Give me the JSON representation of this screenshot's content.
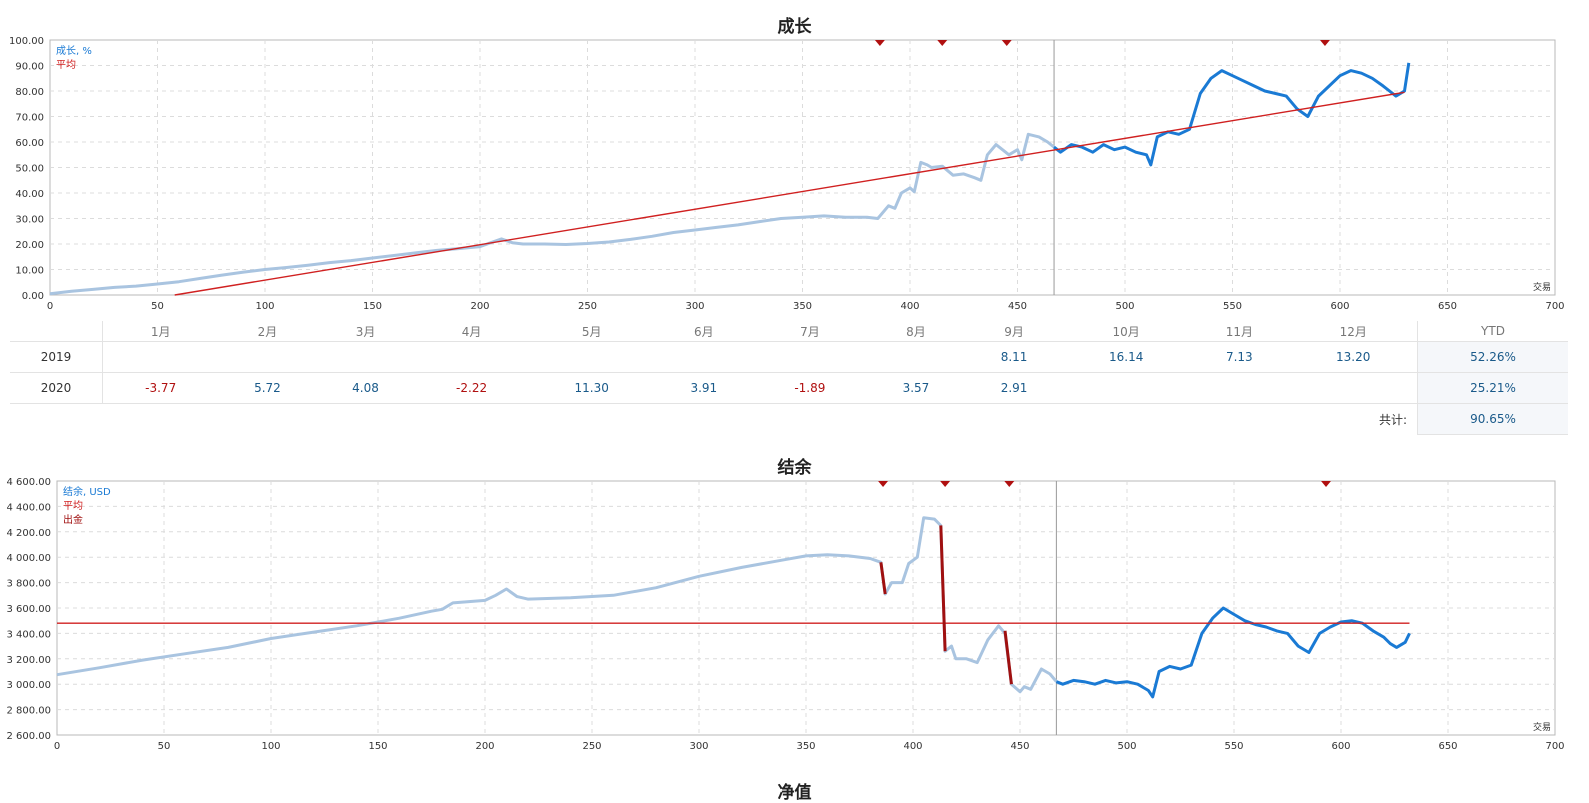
{
  "chart_data": [
    {
      "type": "line",
      "title": "成长",
      "xlabel": "交易",
      "xlim": [
        0,
        700
      ],
      "ylim": [
        0,
        100
      ],
      "x_ticks": [
        "0",
        "50",
        "100",
        "150",
        "200",
        "250",
        "300",
        "350",
        "400",
        "450",
        "500",
        "550",
        "600",
        "650",
        "700"
      ],
      "y_ticks": [
        "0.00",
        "10.00",
        "20.00",
        "30.00",
        "40.00",
        "50.00",
        "60.00",
        "70.00",
        "80.00",
        "90.00",
        "100.00"
      ],
      "grid": true,
      "legend_position": "top-left",
      "legend": [
        "成长, %",
        "平均"
      ],
      "divider_x": 467,
      "markers_x": [
        386,
        415,
        445,
        593
      ],
      "series": [
        {
          "name": "成长, %",
          "color": "#a9c4e0",
          "x": [
            0,
            10,
            20,
            30,
            40,
            50,
            60,
            70,
            80,
            90,
            100,
            110,
            120,
            130,
            140,
            150,
            160,
            170,
            180,
            190,
            200,
            205,
            210,
            215,
            220,
            230,
            240,
            250,
            260,
            270,
            280,
            290,
            300,
            310,
            320,
            330,
            340,
            350,
            360,
            370,
            380,
            385,
            390,
            393,
            396,
            400,
            402,
            405,
            408,
            410,
            415,
            420,
            425,
            430,
            433,
            436,
            440,
            443,
            446,
            450,
            452,
            455,
            460,
            464,
            467
          ],
          "values": [
            0.5,
            1.5,
            2.2,
            3,
            3.5,
            4.3,
            5.2,
            6.5,
            7.8,
            9,
            10,
            10.8,
            11.7,
            12.7,
            13.5,
            14.5,
            15.5,
            16.5,
            17.5,
            18.2,
            19,
            20.5,
            22,
            20.5,
            20,
            20,
            19.8,
            20.2,
            20.8,
            21.8,
            23,
            24.5,
            25.5,
            26.5,
            27.5,
            28.8,
            30,
            30.5,
            31,
            30.5,
            30.5,
            30,
            35,
            34,
            40,
            42,
            40.5,
            52,
            51,
            50,
            50.5,
            47,
            47.5,
            46,
            45,
            55,
            59,
            57,
            55,
            57,
            53,
            63,
            62,
            60,
            58
          ]
        },
        {
          "name": "成长, %",
          "color": "#1a7ad4",
          "x": [
            467,
            470,
            475,
            480,
            485,
            490,
            495,
            500,
            505,
            510,
            512,
            515,
            520,
            525,
            530,
            535,
            540,
            545,
            550,
            555,
            560,
            565,
            570,
            575,
            580,
            585,
            590,
            595,
            600,
            605,
            610,
            615,
            620,
            623,
            626,
            630,
            632
          ],
          "values": [
            58,
            56,
            59,
            58,
            56,
            59,
            57,
            58,
            56,
            55,
            51,
            62,
            64,
            63,
            65,
            79,
            85,
            88,
            86,
            84,
            82,
            80,
            79,
            78,
            73,
            70,
            78,
            82,
            86,
            88,
            87,
            85,
            82,
            80,
            78,
            80,
            91
          ]
        },
        {
          "name": "平均",
          "color": "#d02020",
          "x": [
            58,
            630
          ],
          "values": [
            0,
            79.5
          ]
        }
      ]
    },
    {
      "type": "line",
      "title": "结余",
      "xlabel": "交易",
      "xlim": [
        0,
        700
      ],
      "ylim": [
        2600,
        4600
      ],
      "x_ticks": [
        "0",
        "50",
        "100",
        "150",
        "200",
        "250",
        "300",
        "350",
        "400",
        "450",
        "500",
        "550",
        "600",
        "650",
        "700"
      ],
      "y_ticks": [
        "2 600.00",
        "2 800.00",
        "3 000.00",
        "3 200.00",
        "3 400.00",
        "3 600.00",
        "3 800.00",
        "4 000.00",
        "4 200.00",
        "4 400.00",
        "4 600.00"
      ],
      "grid": true,
      "legend_position": "top-left",
      "legend": [
        "结余, USD",
        "平均",
        "出金"
      ],
      "divider_x": 467,
      "markers_x": [
        386,
        415,
        445,
        593
      ],
      "series": [
        {
          "name": "结余, USD",
          "color": "#a9c4e0",
          "x": [
            0,
            20,
            40,
            60,
            80,
            100,
            120,
            140,
            160,
            175,
            180,
            185,
            200,
            205,
            210,
            215,
            220,
            240,
            260,
            280,
            300,
            320,
            340,
            350,
            360,
            370,
            380,
            385,
            387,
            390,
            395,
            398,
            402,
            405,
            410,
            413,
            415,
            418,
            420,
            425,
            430,
            435,
            440,
            443,
            446,
            450,
            452,
            455,
            460,
            464,
            467
          ],
          "values": [
            3075,
            3130,
            3190,
            3240,
            3290,
            3360,
            3410,
            3460,
            3520,
            3575,
            3590,
            3640,
            3660,
            3700,
            3750,
            3690,
            3670,
            3680,
            3700,
            3760,
            3850,
            3920,
            3980,
            4010,
            4020,
            4010,
            3990,
            3960,
            3710,
            3800,
            3800,
            3950,
            4000,
            4310,
            4300,
            4250,
            3260,
            3300,
            3200,
            3200,
            3170,
            3350,
            3460,
            3400,
            3000,
            2940,
            2980,
            2960,
            3120,
            3080,
            3020
          ]
        },
        {
          "name": "结余, USD",
          "color": "#1a7ad4",
          "x": [
            467,
            470,
            475,
            480,
            485,
            490,
            495,
            500,
            505,
            510,
            512,
            515,
            520,
            525,
            530,
            535,
            540,
            545,
            550,
            555,
            560,
            565,
            570,
            575,
            580,
            585,
            590,
            595,
            600,
            605,
            610,
            615,
            620,
            623,
            626,
            630,
            632
          ],
          "values": [
            3020,
            3000,
            3030,
            3020,
            3000,
            3030,
            3010,
            3020,
            3000,
            2950,
            2900,
            3100,
            3140,
            3120,
            3150,
            3400,
            3520,
            3600,
            3550,
            3500,
            3470,
            3450,
            3420,
            3400,
            3300,
            3250,
            3400,
            3450,
            3490,
            3500,
            3480,
            3420,
            3370,
            3320,
            3290,
            3330,
            3400
          ]
        },
        {
          "name": "平均",
          "color": "#d02020",
          "x": [
            0,
            632
          ],
          "values": [
            3480,
            3480
          ]
        },
        {
          "name": "出金",
          "color": "#a01010",
          "segments": [
            [
              385,
              3960,
              387,
              3710
            ],
            [
              413,
              4250,
              415,
              3260
            ],
            [
              443,
              3420,
              446,
              3000
            ]
          ]
        }
      ]
    }
  ],
  "monthly_table": {
    "headers": [
      "1月",
      "2月",
      "3月",
      "4月",
      "5月",
      "6月",
      "7月",
      "8月",
      "9月",
      "10月",
      "11月",
      "12月"
    ],
    "ytd_label": "YTD",
    "rows": [
      {
        "year": "2019",
        "values": [
          "",
          "",
          "",
          "",
          "",
          "",
          "",
          "",
          "8.11",
          "16.14",
          "7.13",
          "13.20"
        ],
        "ytd": "52.26%"
      },
      {
        "year": "2020",
        "values": [
          "-3.77",
          "5.72",
          "4.08",
          "-2.22",
          "11.30",
          "3.91",
          "-1.89",
          "3.57",
          "2.91",
          "",
          "",
          ""
        ],
        "ytd": "25.21%"
      }
    ],
    "total_label": "共计:",
    "total_value": "90.65%"
  },
  "next_title": "净值"
}
